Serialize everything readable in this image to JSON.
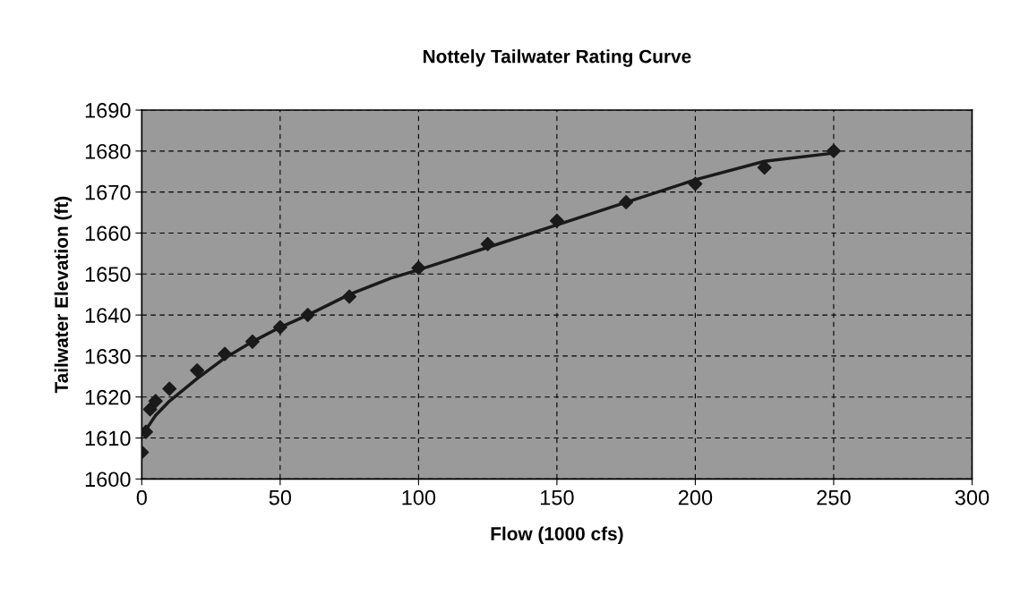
{
  "chart_data": {
    "type": "scatter",
    "title": "Nottely Tailwater Rating Curve",
    "xlabel": "Flow (1000 cfs)",
    "ylabel": "Tailwater Elevation (ft)",
    "xlim": [
      0,
      300
    ],
    "xticks": [
      0,
      50,
      100,
      150,
      200,
      250,
      300
    ],
    "ylim": [
      1600,
      1690
    ],
    "yticks": [
      1600,
      1610,
      1620,
      1630,
      1640,
      1650,
      1660,
      1670,
      1680,
      1690
    ],
    "grid": true,
    "series": [
      {
        "marker": "diamond",
        "color": "#1a1a1a",
        "x": [
          0,
          1.5,
          3,
          5,
          10,
          20,
          30,
          40,
          50,
          60,
          75,
          100,
          125,
          150,
          175,
          200,
          225,
          250
        ],
        "values": [
          1606.5,
          1611.5,
          1617,
          1619,
          1622,
          1626.5,
          1630.5,
          1633.5,
          1637,
          1640,
          1644.5,
          1651.5,
          1657.3,
          1663,
          1667.5,
          1672,
          1676,
          1680
        ]
      },
      {
        "type": "line",
        "marker": "none",
        "color": "#1a1a1a",
        "line_style": "solid",
        "x": [
          1,
          5,
          10,
          20,
          30,
          40,
          50,
          60,
          75,
          90,
          100,
          125,
          150,
          175,
          200,
          225,
          250
        ],
        "values": [
          1611.5,
          1615.5,
          1619,
          1624.5,
          1629.5,
          1633.5,
          1637,
          1640,
          1645,
          1649,
          1651,
          1656.5,
          1662,
          1667.5,
          1673,
          1677.5,
          1679.5
        ]
      }
    ]
  }
}
